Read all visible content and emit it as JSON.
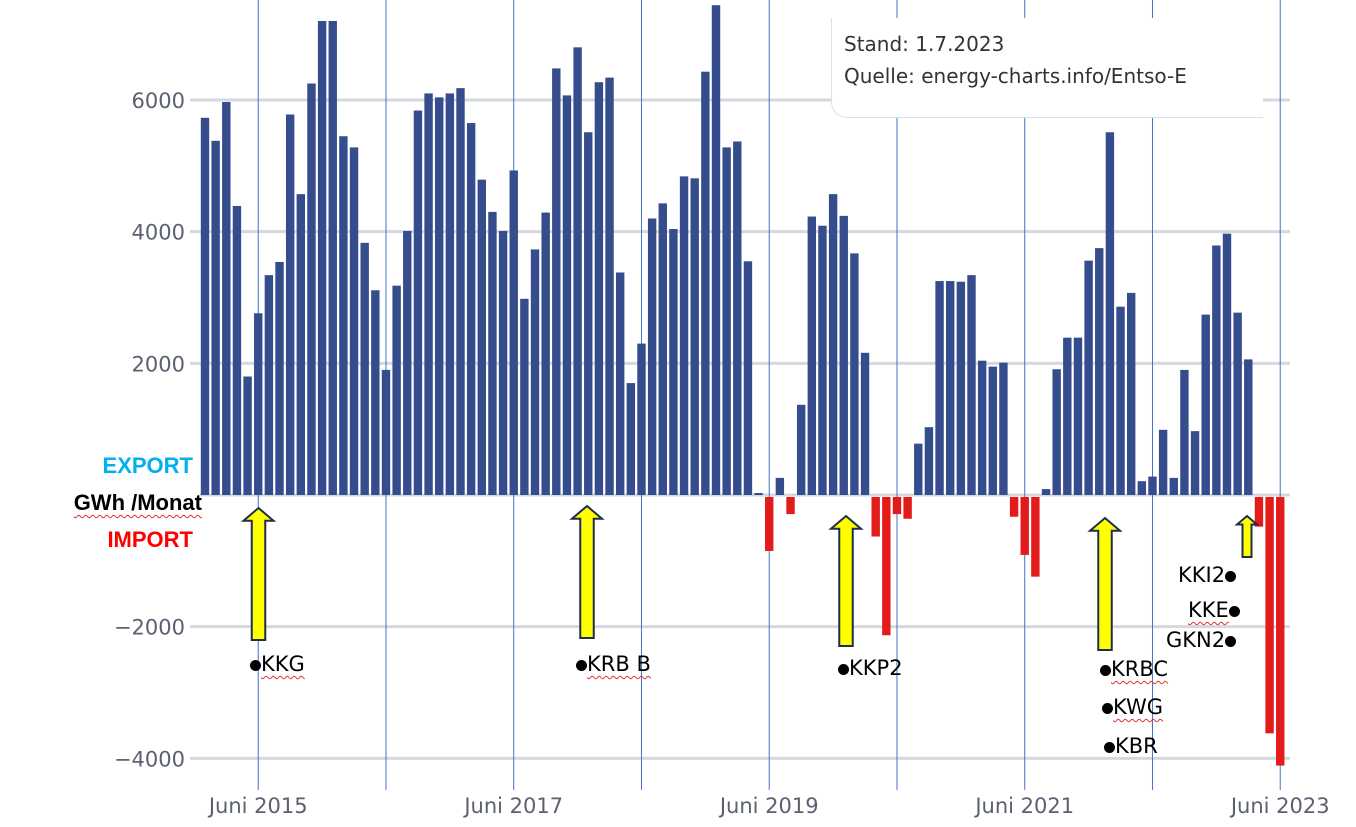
{
  "chart_data": {
    "type": "bar",
    "title": "",
    "xlabel": "",
    "ylabel": "GWh /Monat",
    "ylim": [
      -4000,
      7500
    ],
    "grid": true,
    "yticks": [
      6000,
      4000,
      2000,
      -2000,
      -4000
    ],
    "ytick_labels": [
      "6000",
      "4000",
      "2000",
      "−2000",
      "−4000"
    ],
    "xtick_labels": [
      "Juni 2015",
      "Juni 2017",
      "Juni 2019",
      "Juni 2021",
      "Juni 2023"
    ],
    "x_start": "Jan 2015",
    "x_end": "Jun 2023",
    "colors": {
      "export": "#354d8c",
      "import": "#e31b1b"
    },
    "values": [
      5730,
      5380,
      5970,
      4390,
      1800,
      2760,
      3340,
      3540,
      5780,
      4570,
      6250,
      7200,
      7200,
      5450,
      5280,
      3830,
      3110,
      1900,
      3180,
      4010,
      5840,
      6100,
      6040,
      6100,
      6180,
      5650,
      4790,
      4300,
      4010,
      4930,
      2980,
      3730,
      4290,
      6480,
      6070,
      6800,
      5510,
      6270,
      6340,
      3380,
      1700,
      2300,
      4200,
      4430,
      4040,
      4840,
      4810,
      6430,
      7440,
      5280,
      5370,
      3550,
      30,
      -820,
      260,
      -260,
      1370,
      4230,
      4090,
      4570,
      4240,
      3670,
      2160,
      -600,
      -2100,
      -260,
      -330,
      780,
      1030,
      3250,
      3250,
      3240,
      3340,
      2040,
      1950,
      2010,
      -300,
      -880,
      -1210,
      90,
      1910,
      2390,
      2390,
      3560,
      3750,
      5510,
      2860,
      3070,
      210,
      280,
      990,
      260,
      1900,
      970,
      2740,
      3790,
      3970,
      2770,
      2060,
      -450,
      -3590,
      -4080
    ]
  },
  "legend_left": {
    "export": "EXPORT",
    "unit": "GWh /Monat",
    "import": "IMPORT",
    "export_color": "#00b0f0",
    "import_color": "#ff0000"
  },
  "note": {
    "line1": "Stand: 1.7.2023",
    "line2": "Quelle: energy-charts.info/Entso-E"
  },
  "annotations": {
    "kkg": "KKG",
    "krbb": "KRB B",
    "kkp2": "KKP2",
    "krbc": "KRBC",
    "kwg": "KWG",
    "kbr": "KBR",
    "kki2": "KKI2",
    "kke": "KKE",
    "gkn2": "GKN2"
  }
}
